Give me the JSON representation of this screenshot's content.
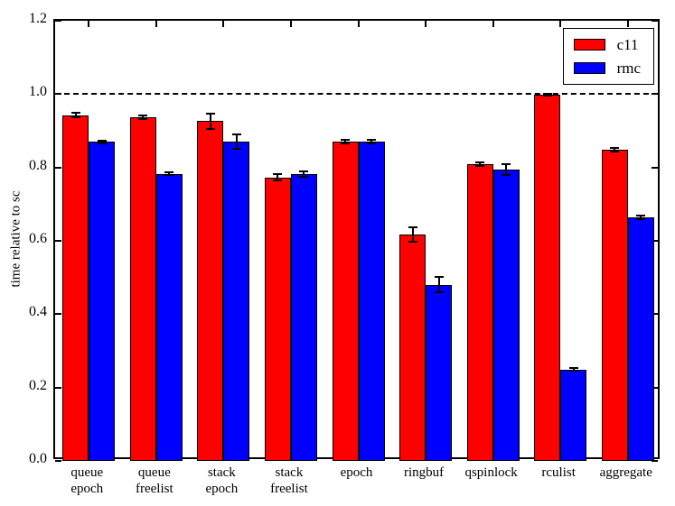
{
  "chart_data": {
    "type": "bar",
    "title": "",
    "xlabel": "",
    "ylabel": "time relative to sc",
    "ylim": [
      0.0,
      1.2
    ],
    "yticks": [
      0.0,
      0.2,
      0.4,
      0.6,
      0.8,
      1.0,
      1.2
    ],
    "reference_line_y": 1.0,
    "grid": false,
    "legend_position": "upper right",
    "categories": [
      "queue\nepoch",
      "queue\nfreelist",
      "stack\nepoch",
      "stack\nfreelist",
      "epoch",
      "ringbuf",
      "qspinlock",
      "rculist",
      "aggregate"
    ],
    "series": [
      {
        "name": "c11",
        "color": "#ff0000",
        "values": [
          0.943,
          0.937,
          0.926,
          0.773,
          0.87,
          0.617,
          0.809,
          0.998,
          0.849
        ],
        "errors": [
          0.005,
          0.004,
          0.021,
          0.008,
          0.005,
          0.019,
          0.005,
          0.003,
          0.005
        ]
      },
      {
        "name": "rmc",
        "color": "#0000ff",
        "values": [
          0.87,
          0.783,
          0.871,
          0.782,
          0.871,
          0.48,
          0.795,
          0.249,
          0.664
        ],
        "errors": [
          0.004,
          0.004,
          0.02,
          0.008,
          0.005,
          0.021,
          0.015,
          0.004,
          0.006
        ]
      }
    ]
  },
  "colors": {
    "background": "#ffffff",
    "axis": "#000000",
    "bar_edge": "#000000",
    "error_bar": "#000000",
    "reference_line": "#000000"
  }
}
